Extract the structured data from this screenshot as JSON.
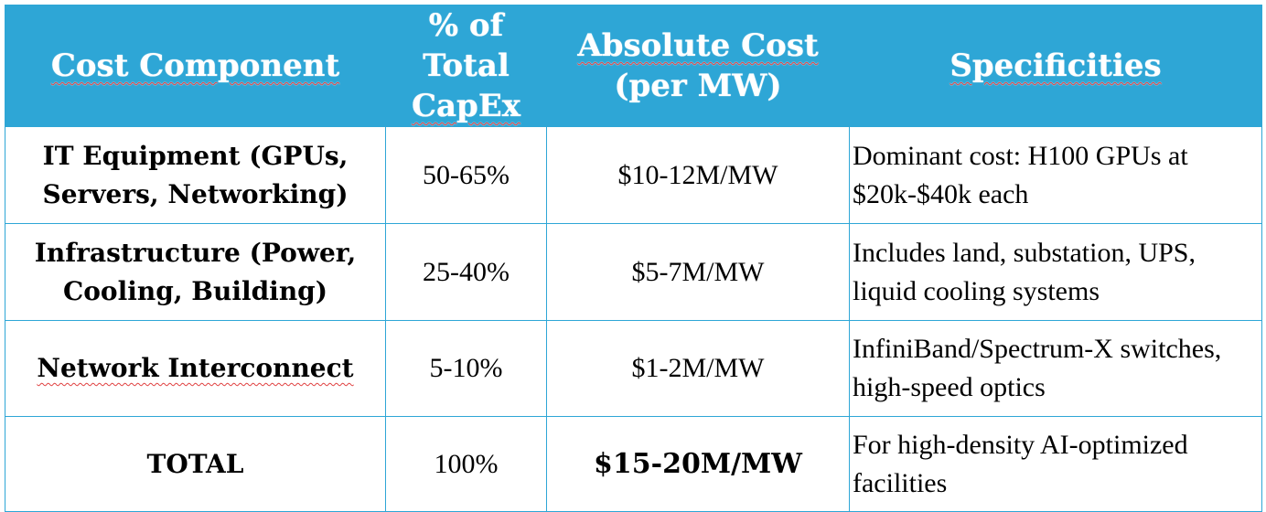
{
  "table": {
    "headers": {
      "component": "Cost Component",
      "pct_line1": "% of Total",
      "pct_line2": "CapEx",
      "abs_line1": "Absolute Cost",
      "abs_line2": "(per MW)",
      "spec": "Specificities"
    },
    "rows": [
      {
        "component_line1": "IT Equipment (GPUs,",
        "component_line2": "Servers, Networking)",
        "pct": "50-65%",
        "abs": "$10-12M/MW",
        "spec_line1": "Dominant cost: H100 GPUs at",
        "spec_line2": "$20k-$40k each"
      },
      {
        "component_line1": "Infrastructure (Power,",
        "component_line2": "Cooling, Building)",
        "pct": "25-40%",
        "abs": "$5-7M/MW",
        "spec_line1": "Includes land, substation, UPS,",
        "spec_line2": "liquid cooling systems"
      },
      {
        "component_line1": "Network Interconnect",
        "pct": "5-10%",
        "abs": "$1-2M/MW",
        "spec_line1": "InfiniBand/Spectrum-X switches,",
        "spec_line2": "high-speed optics"
      },
      {
        "component_line1": "TOTAL",
        "pct": "100%",
        "abs": "$15-20M/MW",
        "spec_line1": "For high-density AI-optimized",
        "spec_line2": "facilities"
      }
    ]
  },
  "colors": {
    "header_bg": "#2ea6d6",
    "header_text": "#ffffff",
    "border": "#2ea6d6",
    "spellcheck_underline": "#e04040"
  }
}
